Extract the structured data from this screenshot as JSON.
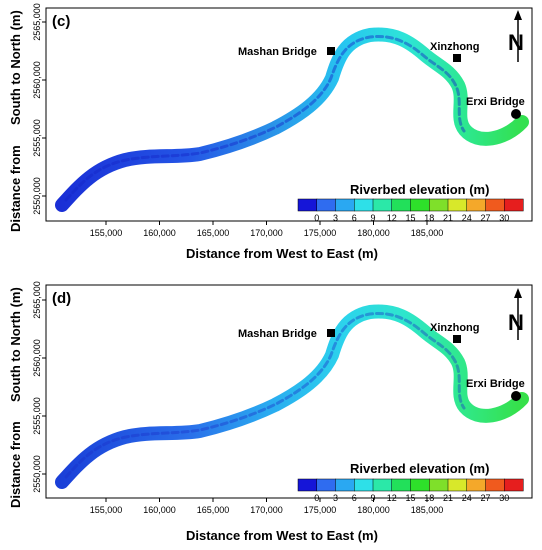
{
  "panels": [
    {
      "label": "(c)",
      "x_axis_title": "Distance from West to East (m)",
      "y_axis_title_line1": "Distance from",
      "y_axis_title_line2": "South to North (m)",
      "x_ticks": [
        "155,000",
        "160,000",
        "165,000",
        "170,000",
        "175,000",
        "180,000",
        "185,000"
      ],
      "y_ticks": [
        "2550,000",
        "2555,000",
        "2560,000",
        "2565,000"
      ],
      "places": {
        "mashan": "Mashan Bridge",
        "xinzhong": "Xinzhong",
        "erxi": "Erxi Bridge"
      },
      "north": "N",
      "legend_title": "Riverbed elevation (m)",
      "legend_ticks": [
        "0",
        "3",
        "6",
        "9",
        "12",
        "15",
        "18",
        "21",
        "24",
        "27",
        "30"
      ]
    },
    {
      "label": "(d)",
      "x_axis_title": "Distance from West to East (m)",
      "y_axis_title_line1": "Distance from",
      "y_axis_title_line2": "South to North (m)",
      "x_ticks": [
        "155,000",
        "160,000",
        "165,000",
        "170,000",
        "175,000",
        "180,000",
        "185,000"
      ],
      "y_ticks": [
        "2550,000",
        "2555,000",
        "2560,000",
        "2565,000"
      ],
      "places": {
        "mashan": "Mashan Bridge",
        "xinzhong": "Xinzhong",
        "erxi": "Erxi Bridge"
      },
      "north": "N",
      "legend_title": "Riverbed elevation (m)",
      "legend_ticks": [
        "0",
        "3",
        "6",
        "9",
        "12",
        "15",
        "18",
        "21",
        "24",
        "27",
        "30"
      ]
    }
  ],
  "legend_colors": [
    "#1515d8",
    "#2f6cf0",
    "#2aa8f2",
    "#2ee0e8",
    "#2be8a8",
    "#22e05a",
    "#2ee02a",
    "#7fe02a",
    "#d8e82a",
    "#f4a82a",
    "#f05a1e",
    "#e61e1e"
  ]
}
